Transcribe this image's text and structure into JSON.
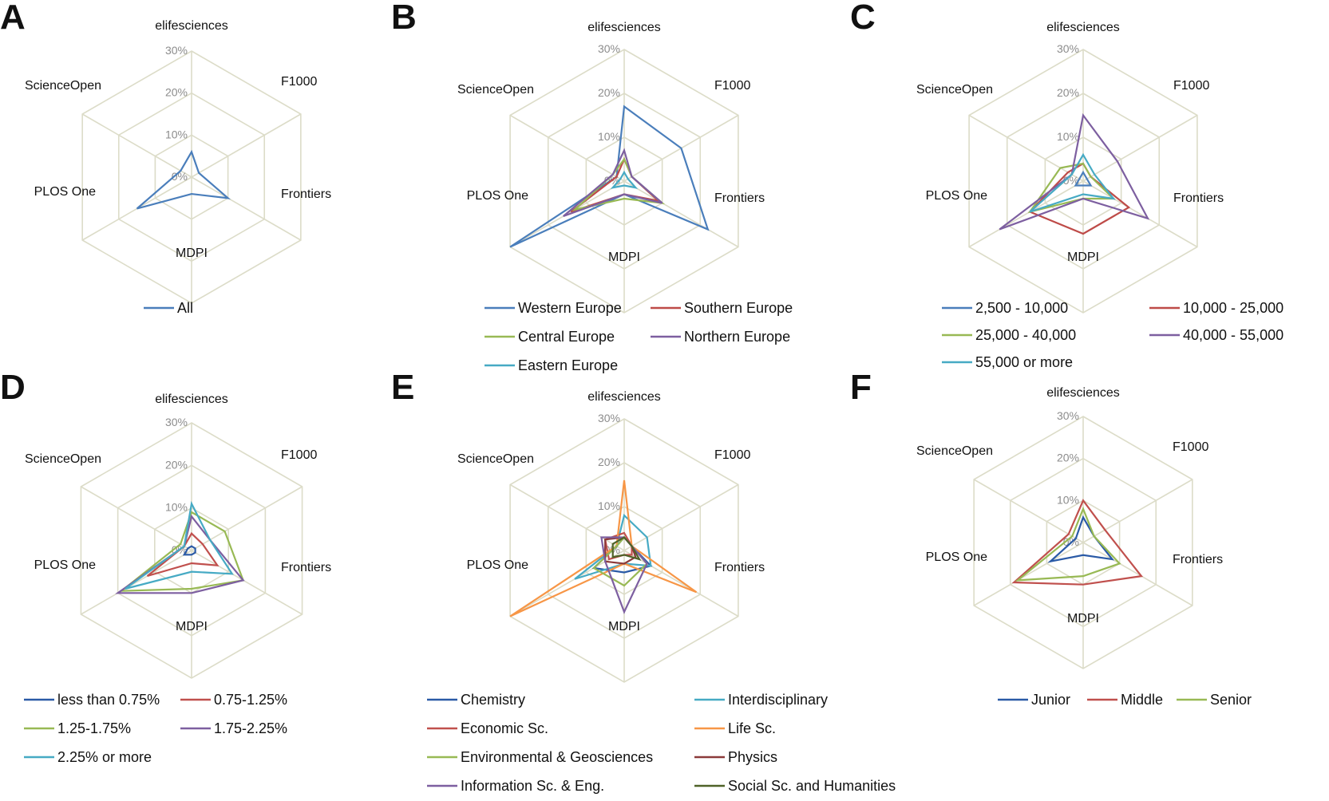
{
  "axes": [
    "elifesciences",
    "F1000",
    "Frontiers",
    "MDPI",
    "PLOS One",
    "ScienceOpen"
  ],
  "tick_labels": [
    "0%",
    "10%",
    "20%",
    "30%"
  ],
  "chart_data": [
    {
      "type": "radar",
      "panel": "A",
      "axes": [
        "elifesciences",
        "F1000",
        "Frontiers",
        "MDPI",
        "PLOS One",
        "ScienceOpen"
      ],
      "rlim": [
        0,
        30
      ],
      "ticks": [
        "0%",
        "10%",
        "20%",
        "30%"
      ],
      "grid": true,
      "legend": "bottom",
      "series": [
        {
          "name": "All",
          "color": "#4a7ebb",
          "values": [
            6,
            2,
            10,
            4,
            15,
            3
          ]
        }
      ]
    },
    {
      "type": "radar",
      "panel": "B",
      "axes": [
        "elifesciences",
        "F1000",
        "Frontiers",
        "MDPI",
        "PLOS One",
        "ScienceOpen"
      ],
      "rlim": [
        0,
        30
      ],
      "ticks": [
        "0%",
        "10%",
        "20%",
        "30%"
      ],
      "grid": true,
      "legend": "bottom",
      "series": [
        {
          "name": "Western Europe",
          "color": "#4a7ebb",
          "values": [
            17,
            15,
            22,
            3,
            30,
            2
          ]
        },
        {
          "name": "Southern Europe",
          "color": "#be4b48",
          "values": [
            5,
            2,
            9,
            3,
            14,
            2
          ]
        },
        {
          "name": "Central Europe",
          "color": "#98b954",
          "values": [
            5,
            2,
            10,
            4,
            13,
            3
          ]
        },
        {
          "name": "Northern Europe",
          "color": "#7d5fa0",
          "values": [
            7,
            2,
            10,
            3,
            16,
            3
          ]
        },
        {
          "name": "Eastern Europe",
          "color": "#46aac4",
          "values": [
            2,
            1,
            3,
            1,
            3,
            1
          ]
        }
      ]
    },
    {
      "type": "radar",
      "panel": "C",
      "axes": [
        "elifesciences",
        "F1000",
        "Frontiers",
        "MDPI",
        "PLOS One",
        "ScienceOpen"
      ],
      "rlim": [
        0,
        30
      ],
      "ticks": [
        "0%",
        "10%",
        "20%",
        "30%"
      ],
      "grid": true,
      "legend": "bottom",
      "series": [
        {
          "name": "2,500 - 10,000",
          "color": "#4a7ebb",
          "values": [
            2,
            1,
            2,
            1,
            2,
            1
          ]
        },
        {
          "name": "10,000 - 25,000",
          "color": "#be4b48",
          "values": [
            4,
            2,
            12,
            12,
            14,
            4
          ]
        },
        {
          "name": "25,000 - 40,000",
          "color": "#98b954",
          "values": [
            4,
            2,
            8,
            4,
            14,
            6
          ]
        },
        {
          "name": "40,000 - 55,000",
          "color": "#7d5fa0",
          "values": [
            15,
            9,
            17,
            4,
            22,
            3
          ]
        },
        {
          "name": "55,000 or more",
          "color": "#46aac4",
          "values": [
            6,
            3,
            8,
            3,
            14,
            3
          ]
        }
      ]
    },
    {
      "type": "radar",
      "panel": "D",
      "axes": [
        "elifesciences",
        "F1000",
        "Frontiers",
        "MDPI",
        "PLOS One",
        "ScienceOpen"
      ],
      "rlim": [
        0,
        30
      ],
      "ticks": [
        "0%",
        "10%",
        "20%",
        "30%"
      ],
      "grid": true,
      "legend": "bottom",
      "series": [
        {
          "name": "less than 0.75%",
          "color": "#2a5aa6",
          "values": [
            1,
            1,
            1,
            1,
            2,
            1
          ]
        },
        {
          "name": "0.75-1.25%",
          "color": "#c0504d",
          "values": [
            4,
            3,
            7,
            3,
            12,
            2
          ]
        },
        {
          "name": "1.25-1.75%",
          "color": "#98b954",
          "values": [
            9,
            9,
            14,
            9,
            19,
            3
          ]
        },
        {
          "name": "1.75-2.25%",
          "color": "#7d5fa0",
          "values": [
            8,
            5,
            14,
            10,
            20,
            2
          ]
        },
        {
          "name": "2.25% or more",
          "color": "#46aac4",
          "values": [
            11,
            5,
            11,
            5,
            18,
            2
          ]
        }
      ]
    },
    {
      "type": "radar",
      "panel": "E",
      "axes": [
        "elifesciences",
        "F1000",
        "Frontiers",
        "MDPI",
        "PLOS One",
        "ScienceOpen"
      ],
      "rlim": [
        0,
        30
      ],
      "ticks": [
        "0%",
        "10%",
        "20%",
        "30%"
      ],
      "grid": true,
      "legend": "bottom",
      "series": [
        {
          "name": "Chemistry",
          "color": "#2a5aa6",
          "values": [
            3,
            2,
            7,
            5,
            8,
            2
          ]
        },
        {
          "name": "Interdisciplinary",
          "color": "#46aac4",
          "values": [
            8,
            6,
            7,
            3,
            13,
            2
          ]
        },
        {
          "name": "Economic Sc.",
          "color": "#c0504d",
          "values": [
            4,
            2,
            2,
            1,
            4,
            5
          ]
        },
        {
          "name": "Life Sc.",
          "color": "#f79646",
          "values": [
            16,
            2,
            19,
            3,
            30,
            2
          ]
        },
        {
          "name": "Environmental & Geosciences",
          "color": "#98b954",
          "values": [
            3,
            2,
            6,
            8,
            8,
            2
          ]
        },
        {
          "name": "Physics",
          "color": "#8b3a3a",
          "values": [
            3,
            2,
            3,
            3,
            5,
            5
          ]
        },
        {
          "name": "Information Sc. & Eng.",
          "color": "#7d5fa0",
          "values": [
            3,
            2,
            6,
            14,
            5,
            6
          ]
        },
        {
          "name": "Social Sc. and Humanities",
          "color": "#4f6228",
          "values": [
            3,
            2,
            4,
            1,
            3,
            3
          ]
        }
      ]
    },
    {
      "type": "radar",
      "panel": "F",
      "axes": [
        "elifesciences",
        "F1000",
        "Frontiers",
        "MDPI",
        "PLOS One",
        "ScienceOpen"
      ],
      "rlim": [
        0,
        30
      ],
      "ticks": [
        "0%",
        "10%",
        "20%",
        "30%"
      ],
      "grid": true,
      "legend": "bottom",
      "series": [
        {
          "name": "Junior",
          "color": "#2a5aa6",
          "values": [
            6,
            3,
            8,
            3,
            9,
            2
          ]
        },
        {
          "name": "Middle",
          "color": "#c0504d",
          "values": [
            10,
            6,
            16,
            10,
            19,
            4
          ]
        },
        {
          "name": "Senior",
          "color": "#98b954",
          "values": [
            8,
            3,
            10,
            8,
            18,
            3
          ]
        }
      ]
    }
  ]
}
